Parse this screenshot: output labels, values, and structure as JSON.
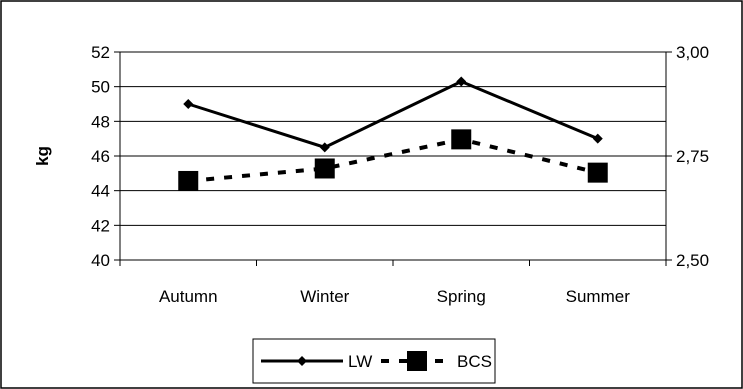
{
  "chart_data": {
    "type": "line",
    "categories": [
      "Autumn",
      "Winter",
      "Spring",
      "Summer"
    ],
    "series": [
      {
        "name": "LW",
        "axis": "left",
        "values": [
          49.0,
          46.5,
          50.3,
          47.0
        ],
        "line_style": "solid",
        "marker": "diamond",
        "color": "#000000"
      },
      {
        "name": "BCS",
        "axis": "right",
        "values": [
          2.69,
          2.72,
          2.79,
          2.71
        ],
        "line_style": "dashed",
        "marker": "square",
        "color": "#000000"
      }
    ],
    "ylabel": "kg",
    "y2label": "",
    "ylim": [
      40,
      52
    ],
    "yticks": [
      "40",
      "42",
      "44",
      "46",
      "48",
      "50",
      "52"
    ],
    "y2lim": [
      2.5,
      3.0
    ],
    "y2ticks": [
      "2,50",
      "2,75",
      "3,00"
    ],
    "grid": "horizontal",
    "legend_position": "bottom"
  }
}
